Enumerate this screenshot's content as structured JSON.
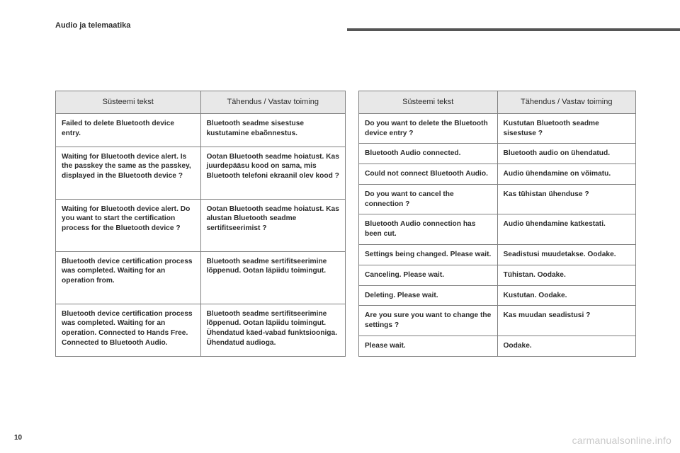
{
  "header": {
    "section": "Audio ja telemaatika"
  },
  "columns": {
    "col1": "Süsteemi tekst",
    "col2": "Tähendus / Vastav toiming"
  },
  "left_rows": [
    {
      "a": "Failed to delete Bluetooth device entry.",
      "b": "Bluetooth seadme sisestuse kustutamine ebaõnnestus."
    },
    {
      "a": "Waiting for Bluetooth device alert. Is the passkey the same as the passkey, displayed in the Bluetooth device ?",
      "b": "Ootan Bluetooth seadme hoiatust. Kas juurdepääsu kood on sama, mis Bluetooth telefoni ekraanil olev kood ?"
    },
    {
      "a": "Waiting for Bluetooth device alert. Do you want to start the certification process for the Bluetooth device ?",
      "b": "Ootan Bluetooth seadme hoiatust. Kas alustan Bluetooth seadme sertifitseerimist ?"
    },
    {
      "a": "Bluetooth device certification process was completed. Waiting for an operation from.",
      "b": "Bluetooth seadme sertifitseerimine lõppenud. Ootan läpiidu toimingut."
    },
    {
      "a": "Bluetooth device certification process was completed. Waiting for an operation. Connected to Hands Free. Connected to Bluetooth Audio.",
      "b": "Bluetooth seadme sertifitseerimine lõppenud. Ootan läpiidu toimingut. Ühendatud käed-vabad funktsiooniga. Ühendatud audioga."
    }
  ],
  "right_rows": [
    {
      "a": "Do you want to delete the Bluetooth device entry ?",
      "b": "Kustutan Bluetooth seadme sisestuse ?"
    },
    {
      "a": "Bluetooth Audio connected.",
      "b": "Bluetooth audio on ühendatud."
    },
    {
      "a": "Could not connect Bluetooth Audio.",
      "b": "Audio ühendamine on võimatu."
    },
    {
      "a": "Do you want to cancel the connection ?",
      "b": "Kas tühistan ühenduse ?"
    },
    {
      "a": "Bluetooth Audio connection has been cut.",
      "b": "Audio ühendamine katkestati."
    },
    {
      "a": "Settings being changed. Please wait.",
      "b": "Seadistusi muudetakse. Oodake."
    },
    {
      "a": "Canceling. Please wait.",
      "b": "Tühistan. Oodake."
    },
    {
      "a": "Deleting. Please wait.",
      "b": "Kustutan. Oodake."
    },
    {
      "a": "Are you sure you want to change the settings ?",
      "b": "Kas muudan seadistusi ?"
    },
    {
      "a": "Please wait.",
      "b": "Oodake."
    }
  ],
  "page_number": "10",
  "watermark": "carmanualsonline.info"
}
